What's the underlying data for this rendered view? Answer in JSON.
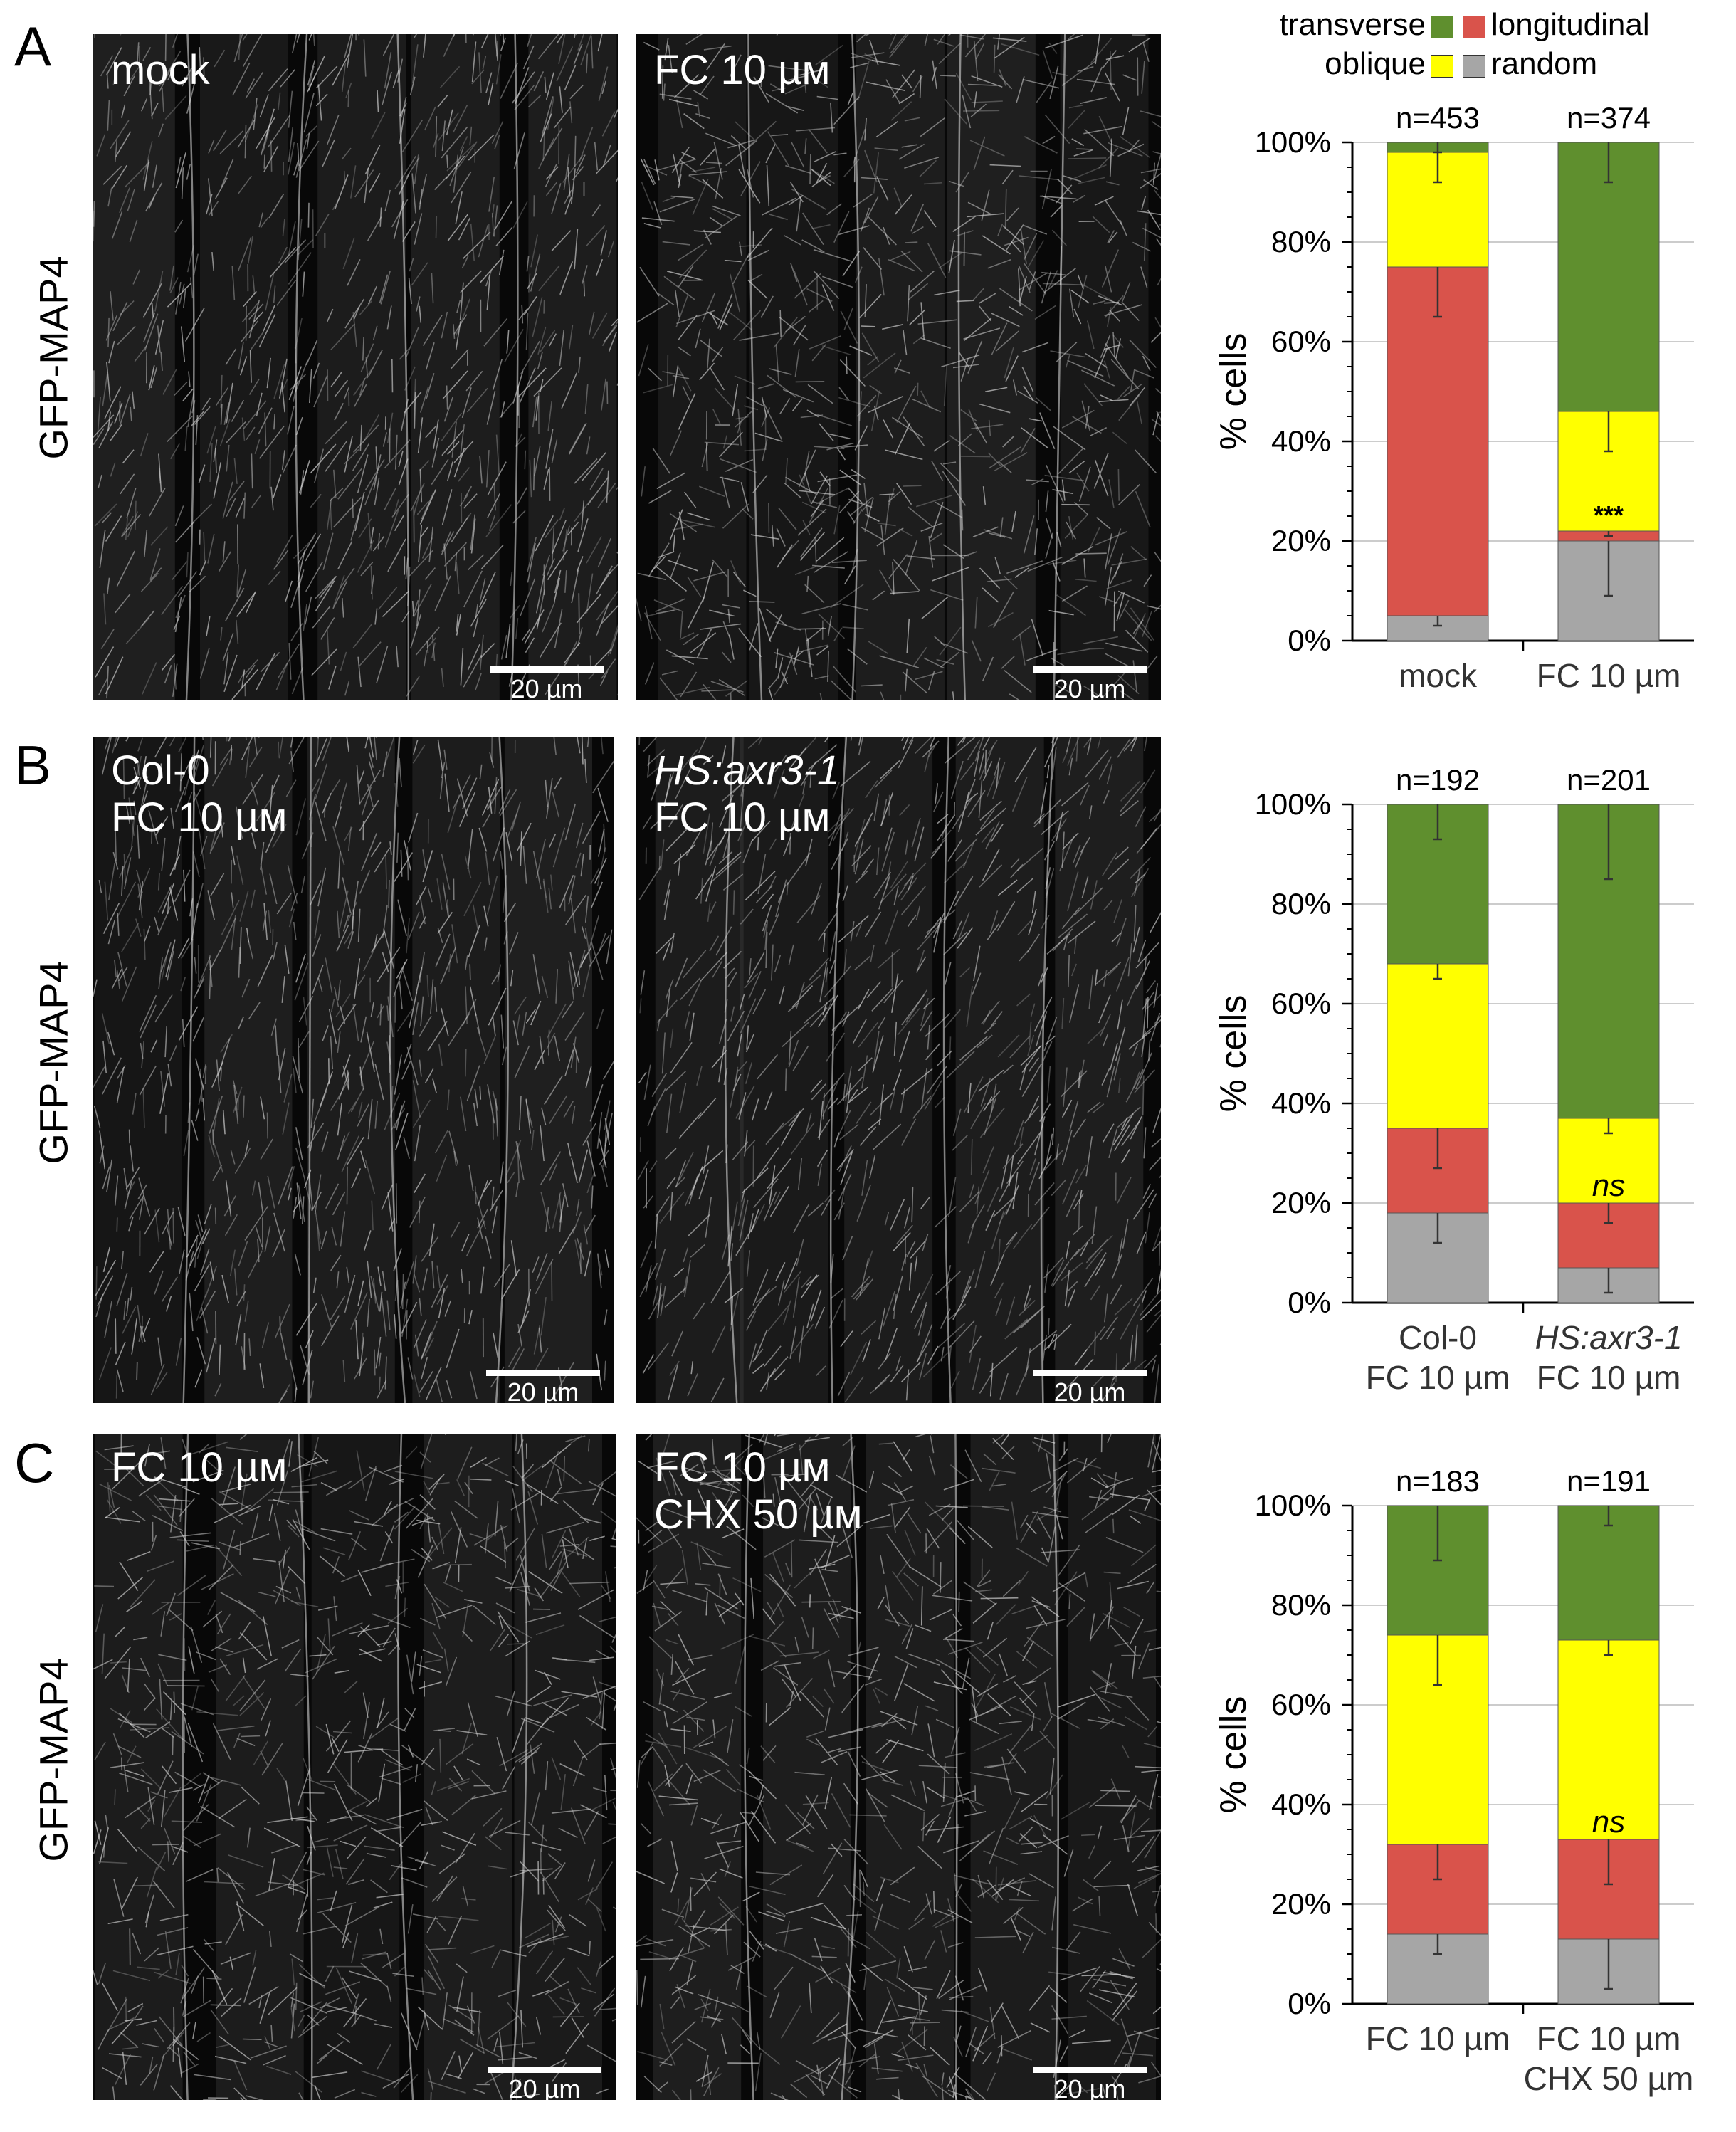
{
  "figure": {
    "panels": [
      {
        "letter": "A",
        "side_label": "GFP-MAP4",
        "images": [
          {
            "label_line1": "mock",
            "label_line2": "",
            "italic": false,
            "scale": "20 µm"
          },
          {
            "label_line1": "FC 10 µм",
            "label_line2": "",
            "italic": false,
            "scale": "20 µm"
          }
        ]
      },
      {
        "letter": "B",
        "side_label": "GFP-MAP4",
        "images": [
          {
            "label_line1": "Col-0",
            "label_line2": "FC 10 µм",
            "italic": false,
            "scale": "20 µm"
          },
          {
            "label_line1": "HS:axr3-1",
            "label_line2": "FC 10 µм",
            "italic": true,
            "scale": "20 µm"
          }
        ]
      },
      {
        "letter": "C",
        "side_label": "GFP-MAP4",
        "images": [
          {
            "label_line1": "FC 10 µм",
            "label_line2": "",
            "italic": false,
            "scale": "20 µm"
          },
          {
            "label_line1": "FC 10 µм",
            "label_line2": "CHX 50 µм",
            "italic": false,
            "scale": "20 µm"
          }
        ]
      }
    ],
    "legend": {
      "transverse": "transverse",
      "longitudinal": "longitudinal",
      "oblique": "oblique",
      "random": "random"
    },
    "colors": {
      "transverse": "#5f8f2e",
      "longitudinal": "#d9534b",
      "oblique": "#ffff00",
      "random": "#a6a6a6",
      "background": "#080808"
    }
  },
  "chart_data": [
    {
      "type": "bar",
      "stacked": true,
      "ylabel": "% cells",
      "ylim": [
        0,
        100
      ],
      "yticks": [
        "0%",
        "20%",
        "40%",
        "60%",
        "80%",
        "100%"
      ],
      "categories": [
        [
          "mock"
        ],
        [
          "FC 10 µm"
        ]
      ],
      "italic_categories": [
        false,
        false
      ],
      "n_labels": [
        "n=453",
        "n=374"
      ],
      "series": [
        {
          "name": "random",
          "values": [
            5,
            20
          ],
          "errors": [
            2,
            11
          ]
        },
        {
          "name": "longitudinal",
          "values": [
            70,
            2
          ],
          "errors": [
            10,
            1
          ]
        },
        {
          "name": "oblique",
          "values": [
            23,
            24
          ],
          "errors": [
            6,
            8
          ]
        },
        {
          "name": "transverse",
          "values": [
            2,
            54
          ],
          "errors": [
            2,
            8
          ]
        }
      ],
      "annotation": {
        "text": "***",
        "category_index": 1,
        "italic": false
      }
    },
    {
      "type": "bar",
      "stacked": true,
      "ylabel": "% cells",
      "ylim": [
        0,
        100
      ],
      "yticks": [
        "0%",
        "20%",
        "40%",
        "60%",
        "80%",
        "100%"
      ],
      "categories": [
        [
          "Col-0",
          "FC 10 µm"
        ],
        [
          "HS:axr3-1",
          "FC 10 µm"
        ]
      ],
      "italic_categories": [
        false,
        true
      ],
      "n_labels": [
        "n=192",
        "n=201"
      ],
      "series": [
        {
          "name": "random",
          "values": [
            18,
            7
          ],
          "errors": [
            6,
            5
          ]
        },
        {
          "name": "longitudinal",
          "values": [
            17,
            13
          ],
          "errors": [
            8,
            4
          ]
        },
        {
          "name": "oblique",
          "values": [
            33,
            17
          ],
          "errors": [
            3,
            3
          ]
        },
        {
          "name": "transverse",
          "values": [
            32,
            63
          ],
          "errors": [
            7,
            15
          ]
        }
      ],
      "annotation": {
        "text": "ns",
        "category_index": 1,
        "italic": true
      }
    },
    {
      "type": "bar",
      "stacked": true,
      "ylabel": "% cells",
      "ylim": [
        0,
        100
      ],
      "yticks": [
        "0%",
        "20%",
        "40%",
        "60%",
        "80%",
        "100%"
      ],
      "categories": [
        [
          "FC 10 µm"
        ],
        [
          "FC 10 µm",
          "CHX 50 µm"
        ]
      ],
      "italic_categories": [
        false,
        false
      ],
      "n_labels": [
        "n=183",
        "n=191"
      ],
      "series": [
        {
          "name": "random",
          "values": [
            14,
            13
          ],
          "errors": [
            4,
            10
          ]
        },
        {
          "name": "longitudinal",
          "values": [
            18,
            20
          ],
          "errors": [
            7,
            9
          ]
        },
        {
          "name": "oblique",
          "values": [
            42,
            40
          ],
          "errors": [
            10,
            3
          ]
        },
        {
          "name": "transverse",
          "values": [
            26,
            27
          ],
          "errors": [
            11,
            4
          ]
        }
      ],
      "annotation": {
        "text": "ns",
        "category_index": 1,
        "italic": true
      }
    }
  ]
}
